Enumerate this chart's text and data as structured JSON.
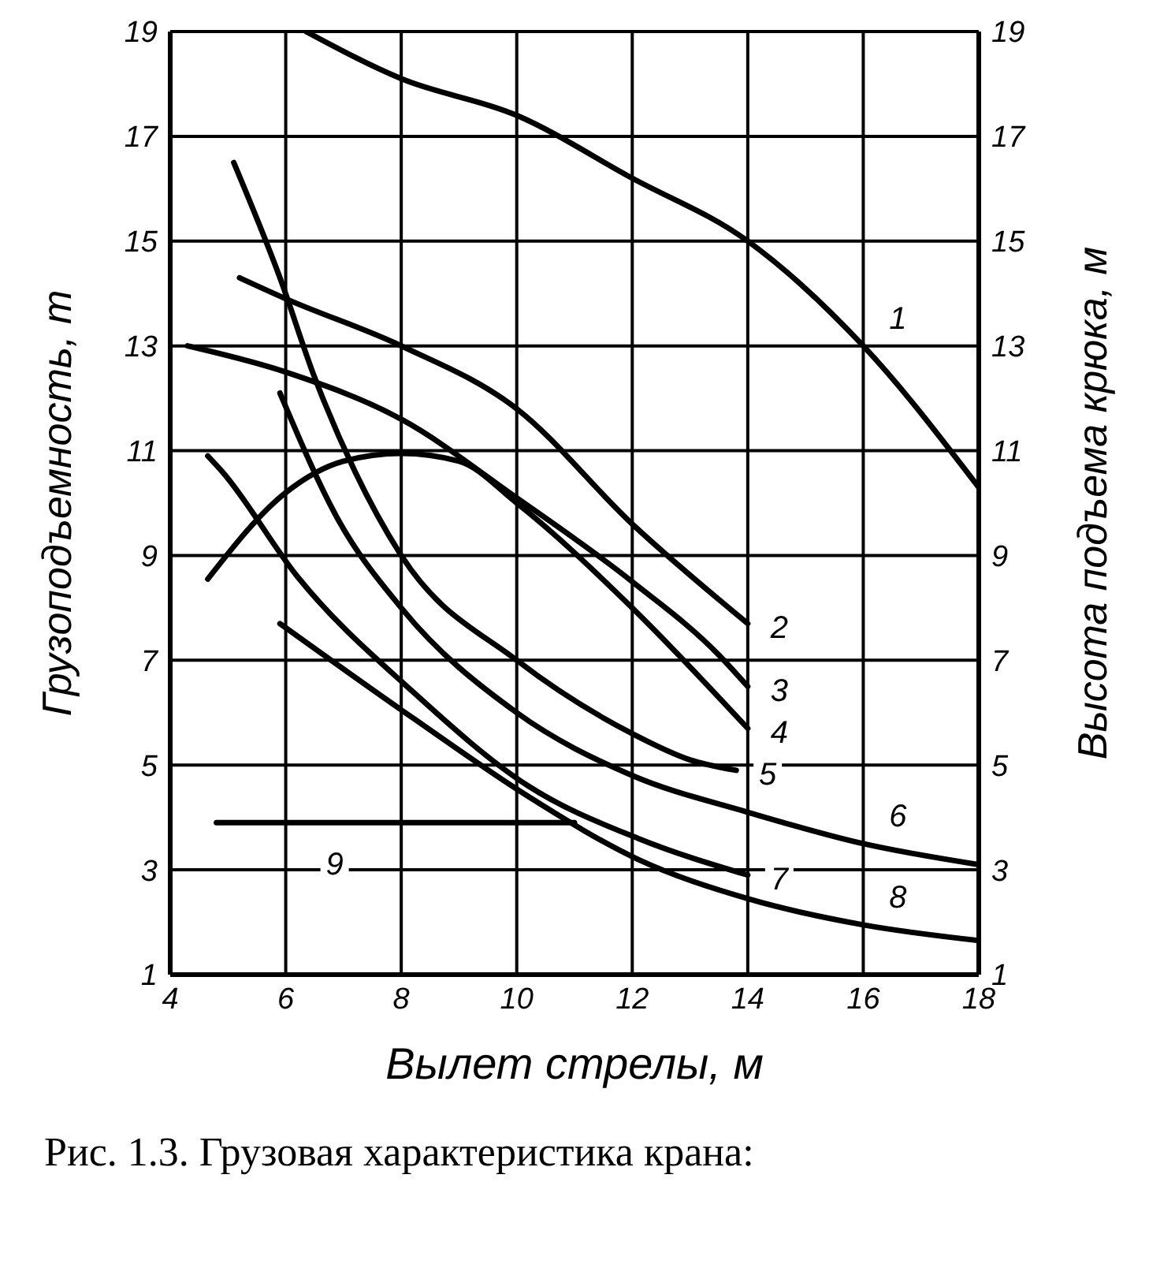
{
  "chart_data": {
    "type": "line",
    "xlabel": "Вылет стрелы, м",
    "ylabel": "Грузоподъемность, т",
    "y2label": "Высота подъема крюка, м",
    "xlim": [
      4,
      18
    ],
    "xticks": [
      4,
      6,
      8,
      10,
      12,
      14,
      16,
      18
    ],
    "ylim": [
      1,
      19
    ],
    "yticks": [
      1,
      3,
      5,
      7,
      9,
      11,
      13,
      15,
      17,
      19
    ],
    "y2lim": [
      1,
      19
    ],
    "y2ticks": [
      1,
      3,
      5,
      7,
      9,
      11,
      13,
      15,
      17,
      19
    ],
    "grid": true,
    "legend": false,
    "marker": "none",
    "line_style": "solid",
    "series": [
      {
        "name": "1",
        "color": "#000000",
        "x": [
          6.35,
          8,
          10,
          12,
          14,
          16,
          18
        ],
        "values": [
          19,
          18.1,
          17.4,
          16.2,
          15,
          13,
          10.3
        ]
      },
      {
        "name": "2",
        "color": "#000000",
        "x": [
          5.2,
          6,
          8,
          10,
          12,
          14
        ],
        "values": [
          14.3,
          13.9,
          13,
          11.8,
          9.6,
          7.7
        ]
      },
      {
        "name": "3",
        "color": "#000000",
        "x": [
          4.3,
          6,
          8,
          10,
          12,
          13.5,
          14
        ],
        "values": [
          13,
          12.5,
          11.6,
          10.1,
          8.5,
          7.1,
          6.5
        ]
      },
      {
        "name": "4",
        "color": "#000000",
        "x": [
          4.65,
          6,
          7,
          8,
          9,
          10,
          12,
          14
        ],
        "values": [
          8.55,
          10.2,
          10.8,
          10.95,
          10.8,
          10,
          8,
          5.7
        ]
      },
      {
        "name": "5",
        "color": "#000000",
        "x": [
          5.1,
          5.9,
          6.5,
          7.2,
          8,
          10,
          12,
          13,
          13.8
        ],
        "values": [
          16.5,
          14.3,
          12.4,
          10.6,
          9,
          7,
          5.6,
          5.1,
          4.9
        ]
      },
      {
        "name": "6",
        "color": "#000000",
        "x": [
          5.9,
          6.9,
          8,
          10,
          12,
          14,
          16,
          18
        ],
        "values": [
          12.1,
          9.7,
          8,
          6,
          4.8,
          4.1,
          3.5,
          3.1
        ]
      },
      {
        "name": "7",
        "color": "#000000",
        "x": [
          4.65,
          4.9,
          6.2,
          8.2,
          10.2,
          12.1,
          14
        ],
        "values": [
          10.9,
          10.6,
          8.6,
          6.4,
          4.6,
          3.6,
          2.9
        ]
      },
      {
        "name": "8",
        "color": "#000000",
        "x": [
          5.9,
          8.2,
          10.2,
          12.1,
          14,
          16,
          18
        ],
        "values": [
          7.7,
          5.9,
          4.4,
          3.2,
          2.45,
          1.95,
          1.65
        ]
      },
      {
        "name": "9",
        "color": "#000000",
        "x": [
          4.8,
          11
        ],
        "values": [
          3.9,
          3.9
        ]
      }
    ],
    "annotations": [
      "Рис. 1.3. Грузовая характеристика крана:"
    ]
  }
}
